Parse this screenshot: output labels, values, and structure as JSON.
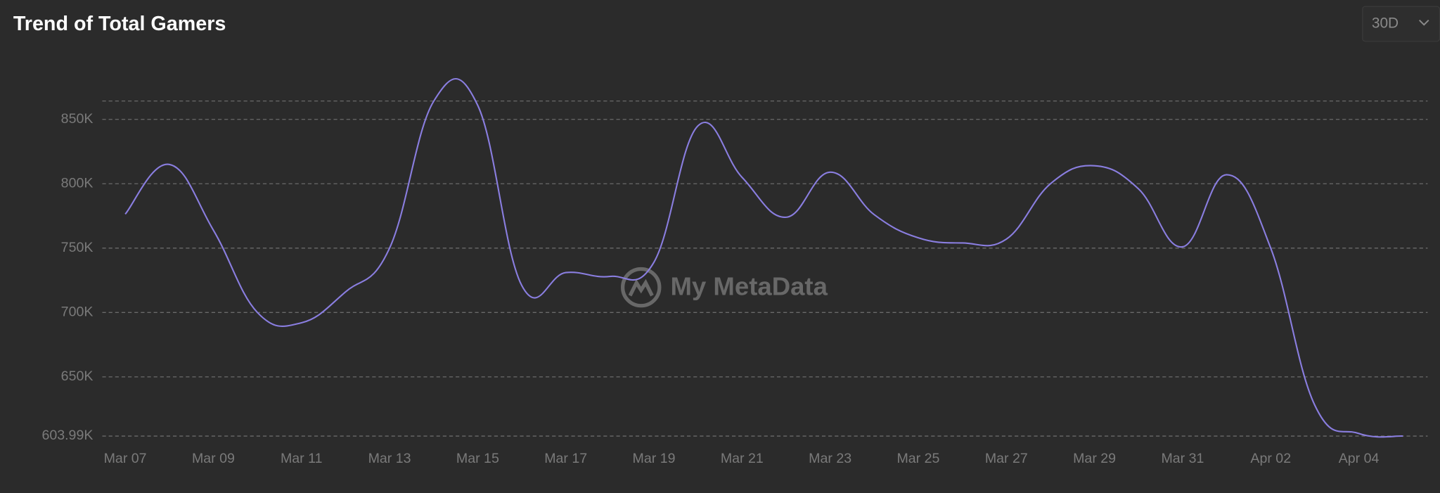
{
  "chart_data": {
    "type": "line",
    "title": "Trend of Total Gamers",
    "watermark": "My MetaData",
    "categories": [
      "Mar 07",
      null,
      "Mar 09",
      null,
      "Mar 11",
      null,
      "Mar 13",
      null,
      "Mar 15",
      null,
      "Mar 17",
      null,
      "Mar 19",
      null,
      "Mar 21",
      null,
      "Mar 23",
      null,
      "Mar 25",
      null,
      "Mar 27",
      null,
      "Mar 29",
      null,
      "Mar 31",
      null,
      "Apr 02",
      null,
      "Apr 04",
      null
    ],
    "series": [
      {
        "name": "Total Gamers",
        "color": "#8a7ee0",
        "values": [
          776400,
          815000,
          764000,
          700000,
          692000,
          716000,
          750000,
          864000,
          861000,
          721000,
          731000,
          728000,
          739000,
          845000,
          805000,
          774000,
          809000,
          776000,
          758000,
          754000,
          757000,
          800000,
          814000,
          796000,
          751000,
          807000,
          750000,
          628000,
          606000,
          603990
        ]
      }
    ],
    "ylim": [
      603990,
      864290
    ],
    "yticks": [
      {
        "value": 603990,
        "label": "603.99K"
      },
      {
        "value": 650000,
        "label": "650K"
      },
      {
        "value": 700000,
        "label": "700K"
      },
      {
        "value": 750000,
        "label": "750K"
      },
      {
        "value": 800000,
        "label": "800K"
      },
      {
        "value": 850000,
        "label": "850K"
      }
    ],
    "grid": true
  },
  "range_selector": "30D"
}
